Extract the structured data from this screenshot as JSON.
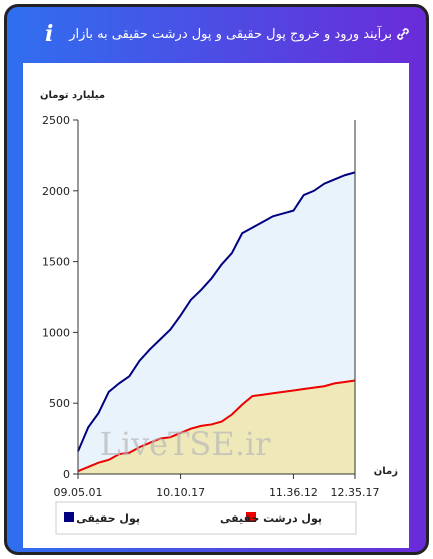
{
  "header": {
    "title": "برآیند ورود و خروج پول حقیقی و پول درشت حقیقی به بازار"
  },
  "chart_data": {
    "type": "area",
    "y_label": "میلیارد تومان",
    "x_label": "زمان",
    "watermark": "LiveTSE.ir",
    "categories": [
      "09.05.01",
      null,
      null,
      null,
      null,
      null,
      null,
      null,
      null,
      null,
      "10.10.17",
      null,
      null,
      null,
      null,
      null,
      null,
      null,
      null,
      null,
      null,
      "11.36.12",
      null,
      null,
      null,
      null,
      null,
      "12.35.17"
    ],
    "series": [
      {
        "name": "پول حقیقی",
        "color": "#000080",
        "fill": "#e8f3fc",
        "values": [
          160,
          330,
          430,
          580,
          640,
          690,
          800,
          880,
          950,
          1020,
          1120,
          1230,
          1300,
          1380,
          1480,
          1560,
          1700,
          1740,
          1780,
          1820,
          1840,
          1860,
          1970,
          2000,
          2050,
          2080,
          2110,
          2130
        ]
      },
      {
        "name": "پول درشت حقیقی",
        "color": "#ee0000",
        "fill": "#efe9b9",
        "values": [
          20,
          50,
          80,
          100,
          140,
          150,
          190,
          220,
          250,
          260,
          290,
          320,
          340,
          350,
          370,
          420,
          490,
          550,
          560,
          570,
          580,
          590,
          600,
          610,
          620,
          640,
          650,
          660
        ]
      }
    ],
    "ylim": [
      0,
      2500
    ],
    "yticks": [
      0,
      500,
      1000,
      1500,
      2000,
      2500
    ]
  }
}
